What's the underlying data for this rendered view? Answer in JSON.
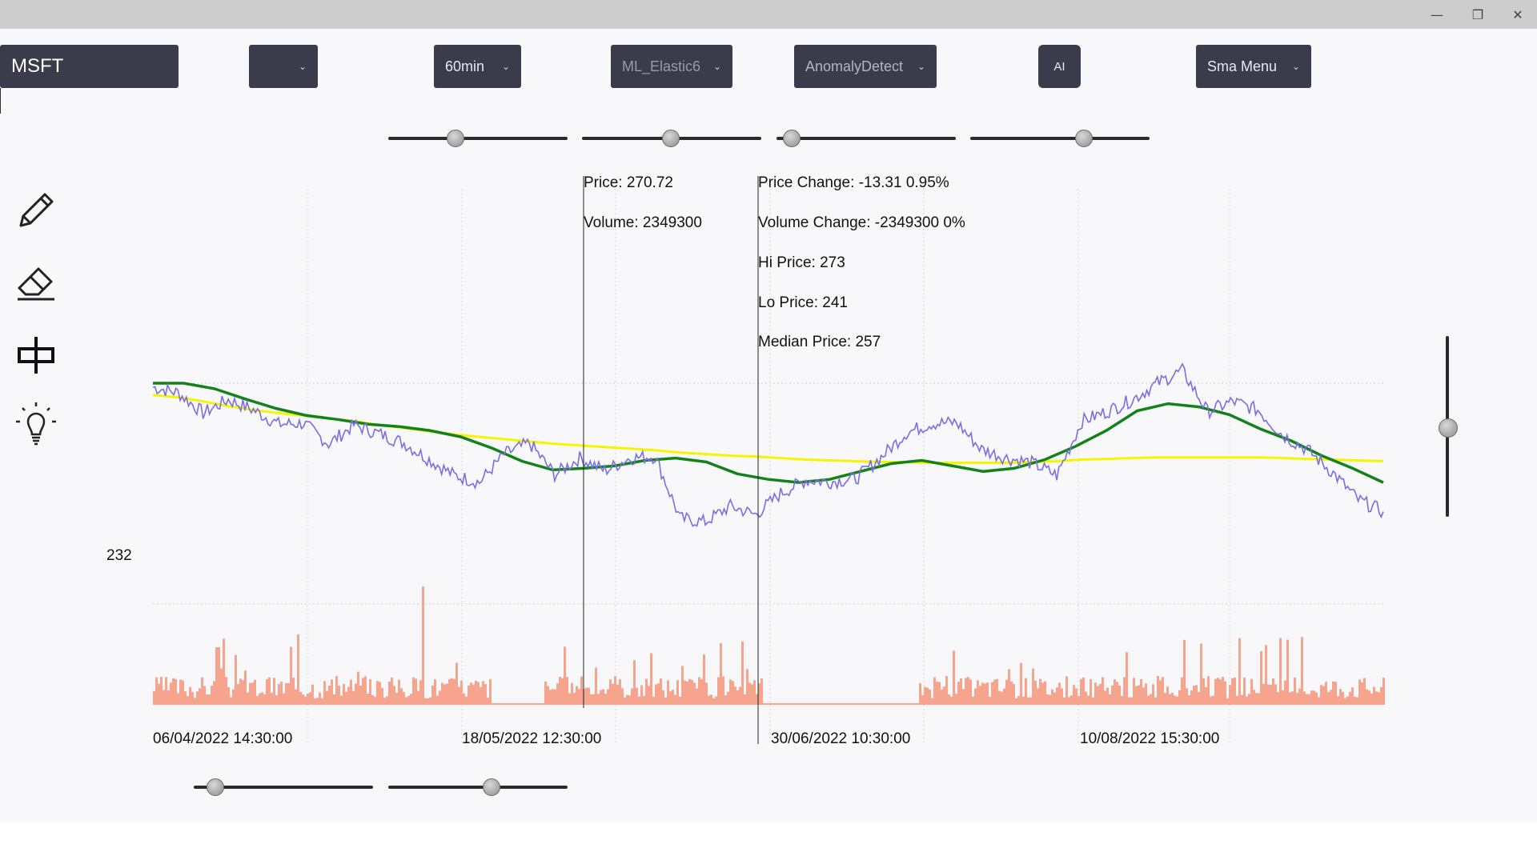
{
  "window": {
    "minimize_icon": "—",
    "maximize_icon": "❐",
    "close_icon": "✕"
  },
  "toolbar": {
    "symbol": "MSFT",
    "empty_dropdown": "",
    "interval": "60min",
    "model": "ML_Elastic6",
    "anomaly": "AnomalyDetect",
    "ai_label": "AI",
    "sma_menu": "Sma Menu",
    "chevron": "⌄"
  },
  "sliders": {
    "top": [
      0.36,
      0.49,
      0.04,
      0.64
    ],
    "bottom": [
      0.08,
      0.58
    ],
    "vertical": 0.5
  },
  "tools": [
    "pencil-icon",
    "eraser-icon",
    "candlestick-icon",
    "lightbulb-icon"
  ],
  "info": {
    "price": "Price: 270.72",
    "volume": "Volume: 2349300",
    "price_change": "Price Change: -13.31 0.95%",
    "volume_change": "Volume Change: -2349300 0%",
    "hi_price": "Hi Price: 273",
    "lo_price": "Lo Price: 241",
    "median_price": "Median Price: 257"
  },
  "y_label": "232",
  "x_labels": [
    "06/04/2022 14:30:00",
    "18/05/2022 12:30:00",
    "30/06/2022 10:30:00",
    "10/08/2022 15:30:00"
  ],
  "colors": {
    "price_line": "#7b6ee0",
    "sma_long": "#f5f500",
    "sma_short": "#13821a",
    "volume": "#f7a48f",
    "button_bg": "#3a3b4b"
  },
  "chart_data": {
    "type": "line",
    "title": "",
    "x_range": [
      "06/04/2022 14:30:00",
      "10/08/2022 15:30:00"
    ],
    "y_min_label": 232,
    "hi_price": 273,
    "lo_price": 241,
    "median_price": 257,
    "cursor_price": 270.72,
    "cursor_volume": 2349300,
    "series": [
      {
        "values": [
          264.5,
          263.8,
          261.2,
          262.9,
          261.6,
          259.8,
          259.9,
          257.3,
          259.7,
          258.6,
          257.4,
          255.3,
          253.3,
          252.4,
          256.0,
          257.4,
          253.4,
          255.5,
          253.9,
          255.5,
          255.7,
          247.8,
          247.4,
          249.4,
          248.3,
          251.0,
          252.7,
          252.5,
          252.9,
          255.6,
          258.7,
          259.9,
          260.0,
          256.6,
          255.5,
          254.9,
          253.3,
          260.2,
          261.4,
          262.9,
          265.0,
          266.6,
          261.4,
          262.7,
          261.6,
          258.4,
          256.5,
          253.6,
          250.2,
          248.7
        ]
      },
      {
        "values": [
          263.5,
          263.2,
          262.7,
          262.1,
          261.6,
          261.2,
          260.9,
          260.5,
          260.2,
          259.7,
          259.3,
          258.9,
          258.5,
          258.2,
          257.9,
          257.6,
          257.3,
          257.1,
          256.9,
          256.7,
          256.5,
          256.2,
          256.0,
          255.8,
          255.7,
          255.5,
          255.3,
          255.2,
          255.1,
          255.0,
          255.0,
          254.9,
          254.9,
          254.9,
          254.9,
          255.0,
          255.1,
          255.3,
          255.4,
          255.5,
          255.6,
          255.6,
          255.6,
          255.6,
          255.6,
          255.5,
          255.4,
          255.3,
          255.2,
          255.1
        ]
      },
      {
        "values": [
          265.0,
          265.0,
          264.3,
          263.0,
          261.8,
          260.9,
          260.4,
          259.8,
          259.5,
          259.0,
          258.2,
          256.8,
          255.1,
          254.0,
          254.2,
          254.5,
          255.2,
          255.5,
          255.0,
          253.5,
          252.8,
          252.4,
          252.8,
          253.8,
          254.8,
          255.2,
          254.5,
          253.8,
          254.2,
          255.3,
          257.0,
          259.0,
          261.5,
          262.4,
          262.0,
          261.0,
          259.2,
          257.7,
          255.8,
          254.2,
          252.4
        ]
      }
    ]
  }
}
